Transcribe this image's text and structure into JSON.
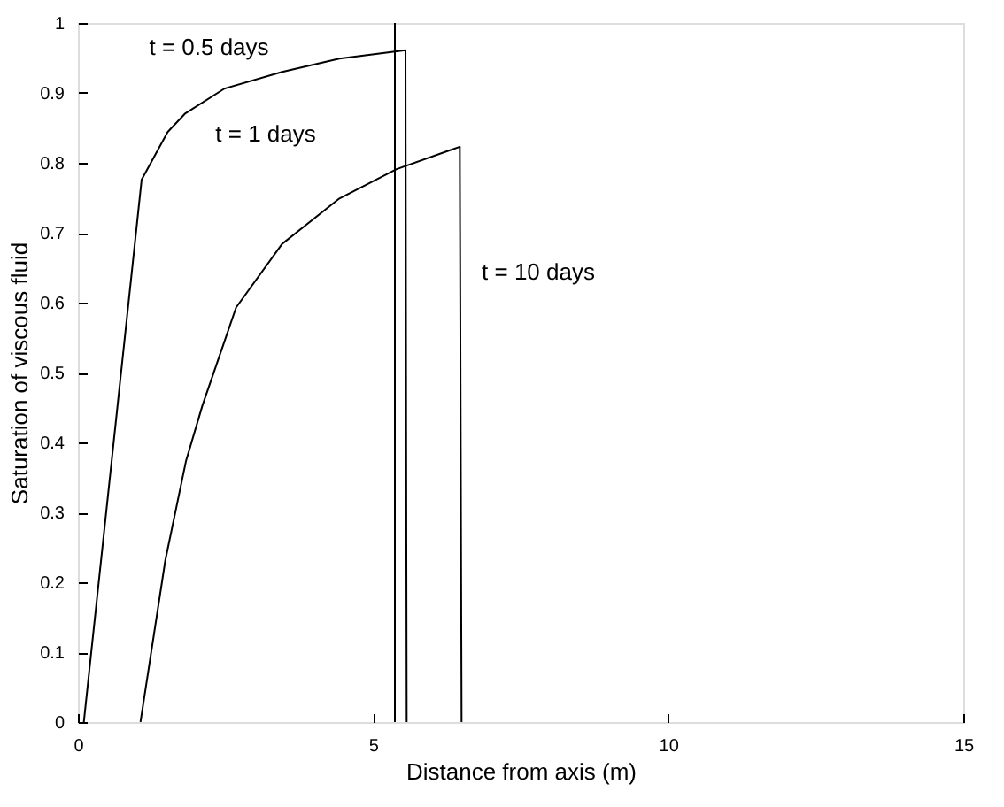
{
  "chart_data": {
    "type": "line",
    "xlabel": "Distance from axis (m)",
    "ylabel": "Saturation of viscous fluid",
    "xlim": [
      0,
      15
    ],
    "xticks": [
      0,
      5,
      10,
      15
    ],
    "ylim": [
      0,
      1
    ],
    "yticks": [
      0,
      0.1,
      0.2,
      0.3,
      0.4,
      0.5,
      0.6,
      0.7,
      0.8,
      0.9,
      1
    ],
    "grid": false,
    "legend": false,
    "marker": "none",
    "line_style": "solid",
    "series": [
      {
        "color": "#000000",
        "x": [
          0.1,
          1.08,
          1.52,
          1.81,
          2.48,
          3.46,
          4.43,
          5.55,
          5.57
        ],
        "values": [
          0,
          0.776,
          0.844,
          0.87,
          0.906,
          0.93,
          0.949,
          0.961,
          0
        ]
      },
      {
        "color": "#000000",
        "x": [
          1.06,
          1.48,
          1.83,
          2.11,
          2.68,
          3.46,
          4.43,
          5.4,
          6.47,
          6.5
        ],
        "values": [
          0,
          0.231,
          0.373,
          0.453,
          0.593,
          0.684,
          0.749,
          0.791,
          0.823,
          0
        ]
      },
      {
        "color": "#000000",
        "x": [
          5.37,
          5.37
        ],
        "values": [
          1,
          0
        ]
      }
    ],
    "annotations": [
      "t = 0.5 days",
      "t = 1 days",
      "t = 10 days"
    ]
  }
}
